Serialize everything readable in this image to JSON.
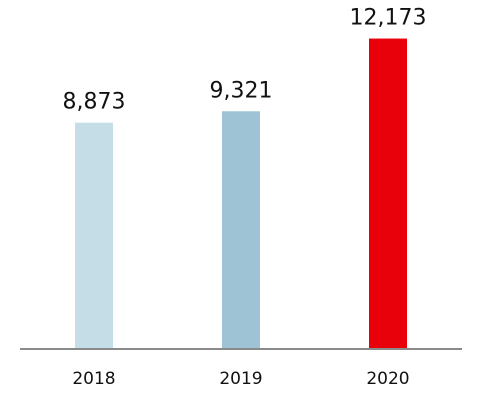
{
  "chart_data": {
    "type": "bar",
    "categories": [
      "2018",
      "2019",
      "2020"
    ],
    "values": [
      8873,
      9321,
      12173
    ],
    "value_labels": [
      "8,873",
      "9,321",
      "12,173"
    ],
    "bar_colors": [
      "#c5dde6",
      "#9dc3d5",
      "#e8000b"
    ],
    "title": "",
    "xlabel": "",
    "ylabel": "",
    "ylim": [
      0,
      12900
    ],
    "grid": false,
    "legend": "none",
    "axis_color": "#8a8a8a"
  }
}
